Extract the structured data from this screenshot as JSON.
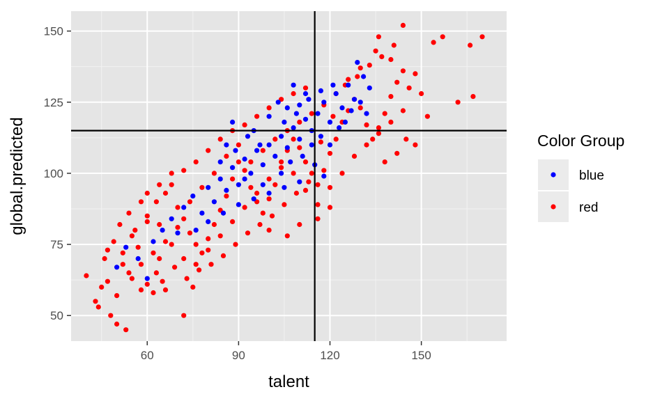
{
  "chart_data": {
    "type": "scatter",
    "title": "",
    "xlabel": "talent",
    "ylabel": "global.predicted",
    "xlim": [
      35,
      178
    ],
    "ylim": [
      41,
      157
    ],
    "x_ticks": [
      60,
      90,
      120,
      150
    ],
    "x_tick_labels": [
      "60",
      "90",
      "120",
      "150"
    ],
    "y_ticks": [
      50,
      75,
      100,
      125,
      150
    ],
    "y_tick_labels": [
      "50",
      "75",
      "100",
      "125",
      "150"
    ],
    "grid": true,
    "reference_lines": {
      "vertical_x": 115,
      "horizontal_y": 115
    },
    "legend": {
      "title": "Color Group",
      "placement": "right",
      "entries": [
        {
          "label": "blue",
          "color": "#0000ff"
        },
        {
          "label": "red",
          "color": "#ff0000"
        }
      ]
    },
    "series": [
      {
        "name": "red",
        "color": "#ff0000",
        "points": [
          [
            40,
            64
          ],
          [
            44,
            53
          ],
          [
            43,
            55
          ],
          [
            45,
            60
          ],
          [
            47,
            62
          ],
          [
            48,
            50
          ],
          [
            50,
            47
          ],
          [
            53,
            45
          ],
          [
            50,
            57
          ],
          [
            52,
            68
          ],
          [
            55,
            63
          ],
          [
            58,
            59
          ],
          [
            60,
            61
          ],
          [
            62,
            58
          ],
          [
            65,
            62
          ],
          [
            64,
            70
          ],
          [
            57,
            74
          ],
          [
            55,
            78
          ],
          [
            60,
            83
          ],
          [
            63,
            90
          ],
          [
            66,
            93
          ],
          [
            68,
            96
          ],
          [
            70,
            88
          ],
          [
            72,
            84
          ],
          [
            74,
            79
          ],
          [
            76,
            75
          ],
          [
            78,
            72
          ],
          [
            80,
            77
          ],
          [
            82,
            82
          ],
          [
            84,
            87
          ],
          [
            86,
            92
          ],
          [
            88,
            98
          ],
          [
            90,
            104
          ],
          [
            92,
            101
          ],
          [
            94,
            95
          ],
          [
            96,
            90
          ],
          [
            98,
            86
          ],
          [
            100,
            91
          ],
          [
            102,
            96
          ],
          [
            104,
            102
          ],
          [
            106,
            108
          ],
          [
            108,
            112
          ],
          [
            110,
            109
          ],
          [
            112,
            104
          ],
          [
            114,
            100
          ],
          [
            116,
            96
          ],
          [
            118,
            101
          ],
          [
            120,
            107
          ],
          [
            122,
            112
          ],
          [
            124,
            118
          ],
          [
            126,
            122
          ],
          [
            128,
            126
          ],
          [
            130,
            123
          ],
          [
            132,
            117
          ],
          [
            134,
            112
          ],
          [
            136,
            116
          ],
          [
            138,
            121
          ],
          [
            140,
            127
          ],
          [
            142,
            132
          ],
          [
            144,
            136
          ],
          [
            140,
            140
          ],
          [
            135,
            143
          ],
          [
            130,
            137
          ],
          [
            126,
            133
          ],
          [
            122,
            128
          ],
          [
            118,
            124
          ],
          [
            114,
            121
          ],
          [
            110,
            118
          ],
          [
            106,
            115
          ],
          [
            102,
            112
          ],
          [
            98,
            108
          ],
          [
            94,
            104
          ],
          [
            90,
            110
          ],
          [
            86,
            106
          ],
          [
            82,
            100
          ],
          [
            78,
            95
          ],
          [
            74,
            90
          ],
          [
            70,
            81
          ],
          [
            66,
            76
          ],
          [
            62,
            72
          ],
          [
            58,
            68
          ],
          [
            54,
            65
          ],
          [
            52,
            72
          ],
          [
            56,
            80
          ],
          [
            60,
            85
          ],
          [
            64,
            82
          ],
          [
            68,
            75
          ],
          [
            72,
            70
          ],
          [
            76,
            68
          ],
          [
            80,
            73
          ],
          [
            84,
            78
          ],
          [
            88,
            83
          ],
          [
            92,
            88
          ],
          [
            96,
            93
          ],
          [
            100,
            98
          ],
          [
            104,
            104
          ],
          [
            108,
            100
          ],
          [
            112,
            94
          ],
          [
            116,
            89
          ],
          [
            120,
            95
          ],
          [
            124,
            100
          ],
          [
            128,
            106
          ],
          [
            132,
            110
          ],
          [
            136,
            114
          ],
          [
            140,
            118
          ],
          [
            144,
            122
          ],
          [
            146,
            130
          ],
          [
            148,
            135
          ],
          [
            150,
            128
          ],
          [
            152,
            120
          ],
          [
            154,
            146
          ],
          [
            157,
            148
          ],
          [
            162,
            125
          ],
          [
            166,
            145
          ],
          [
            167,
            127
          ],
          [
            170,
            148
          ],
          [
            148,
            110
          ],
          [
            145,
            112
          ],
          [
            142,
            107
          ],
          [
            138,
            104
          ],
          [
            72,
            50
          ],
          [
            75,
            60
          ],
          [
            66,
            59
          ],
          [
            63,
            65
          ],
          [
            69,
            67
          ],
          [
            73,
            63
          ],
          [
            77,
            66
          ],
          [
            81,
            68
          ],
          [
            85,
            71
          ],
          [
            89,
            75
          ],
          [
            93,
            79
          ],
          [
            97,
            82
          ],
          [
            101,
            85
          ],
          [
            105,
            89
          ],
          [
            109,
            93
          ],
          [
            113,
            97
          ],
          [
            117,
            111
          ],
          [
            121,
            120
          ],
          [
            125,
            131
          ],
          [
            129,
            134
          ],
          [
            133,
            138
          ],
          [
            137,
            141
          ],
          [
            141,
            145
          ],
          [
            144,
            152
          ],
          [
            136,
            148
          ],
          [
            112,
            130
          ],
          [
            108,
            128
          ],
          [
            104,
            126
          ],
          [
            100,
            123
          ],
          [
            96,
            120
          ],
          [
            92,
            117
          ],
          [
            88,
            115
          ],
          [
            84,
            112
          ],
          [
            80,
            108
          ],
          [
            76,
            104
          ],
          [
            72,
            101
          ],
          [
            68,
            100
          ],
          [
            64,
            96
          ],
          [
            60,
            93
          ],
          [
            58,
            90
          ],
          [
            54,
            86
          ],
          [
            51,
            82
          ],
          [
            49,
            76
          ],
          [
            47,
            73
          ],
          [
            46,
            70
          ],
          [
            120,
            88
          ],
          [
            116,
            84
          ],
          [
            110,
            82
          ],
          [
            106,
            78
          ],
          [
            100,
            80
          ]
        ]
      },
      {
        "name": "blue",
        "color": "#0000ff",
        "points": [
          [
            50,
            67
          ],
          [
            53,
            74
          ],
          [
            57,
            70
          ],
          [
            60,
            63
          ],
          [
            62,
            76
          ],
          [
            65,
            80
          ],
          [
            68,
            84
          ],
          [
            70,
            79
          ],
          [
            72,
            88
          ],
          [
            75,
            92
          ],
          [
            78,
            86
          ],
          [
            80,
            95
          ],
          [
            82,
            90
          ],
          [
            84,
            98
          ],
          [
            86,
            94
          ],
          [
            88,
            118
          ],
          [
            88,
            102
          ],
          [
            90,
            96
          ],
          [
            92,
            105
          ],
          [
            94,
            100
          ],
          [
            96,
            108
          ],
          [
            98,
            103
          ],
          [
            100,
            110
          ],
          [
            102,
            106
          ],
          [
            104,
            113
          ],
          [
            106,
            109
          ],
          [
            108,
            116
          ],
          [
            110,
            112
          ],
          [
            112,
            119
          ],
          [
            114,
            115
          ],
          [
            116,
            121
          ],
          [
            118,
            125
          ],
          [
            120,
            118
          ],
          [
            122,
            128
          ],
          [
            124,
            123
          ],
          [
            126,
            131
          ],
          [
            128,
            126
          ],
          [
            129,
            139
          ],
          [
            131,
            134
          ],
          [
            133,
            130
          ],
          [
            115,
            103
          ],
          [
            118,
            99
          ],
          [
            110,
            97
          ],
          [
            105,
            95
          ],
          [
            100,
            93
          ],
          [
            95,
            91
          ],
          [
            90,
            89
          ],
          [
            85,
            86
          ],
          [
            80,
            83
          ],
          [
            76,
            80
          ],
          [
            95,
            115
          ],
          [
            100,
            120
          ],
          [
            105,
            118
          ],
          [
            110,
            124
          ],
          [
            112,
            128
          ],
          [
            108,
            131
          ],
          [
            103,
            125
          ],
          [
            97,
            110
          ],
          [
            93,
            113
          ],
          [
            89,
            108
          ],
          [
            86,
            110
          ],
          [
            84,
            104
          ],
          [
            92,
            98
          ],
          [
            98,
            96
          ],
          [
            104,
            100
          ],
          [
            107,
            104
          ],
          [
            111,
            106
          ],
          [
            114,
            110
          ],
          [
            117,
            113
          ],
          [
            120,
            110
          ],
          [
            123,
            116
          ],
          [
            125,
            118
          ],
          [
            127,
            122
          ],
          [
            130,
            125
          ],
          [
            132,
            121
          ],
          [
            121,
            131
          ],
          [
            117,
            129
          ],
          [
            113,
            126
          ],
          [
            109,
            121
          ],
          [
            106,
            123
          ]
        ]
      }
    ]
  }
}
